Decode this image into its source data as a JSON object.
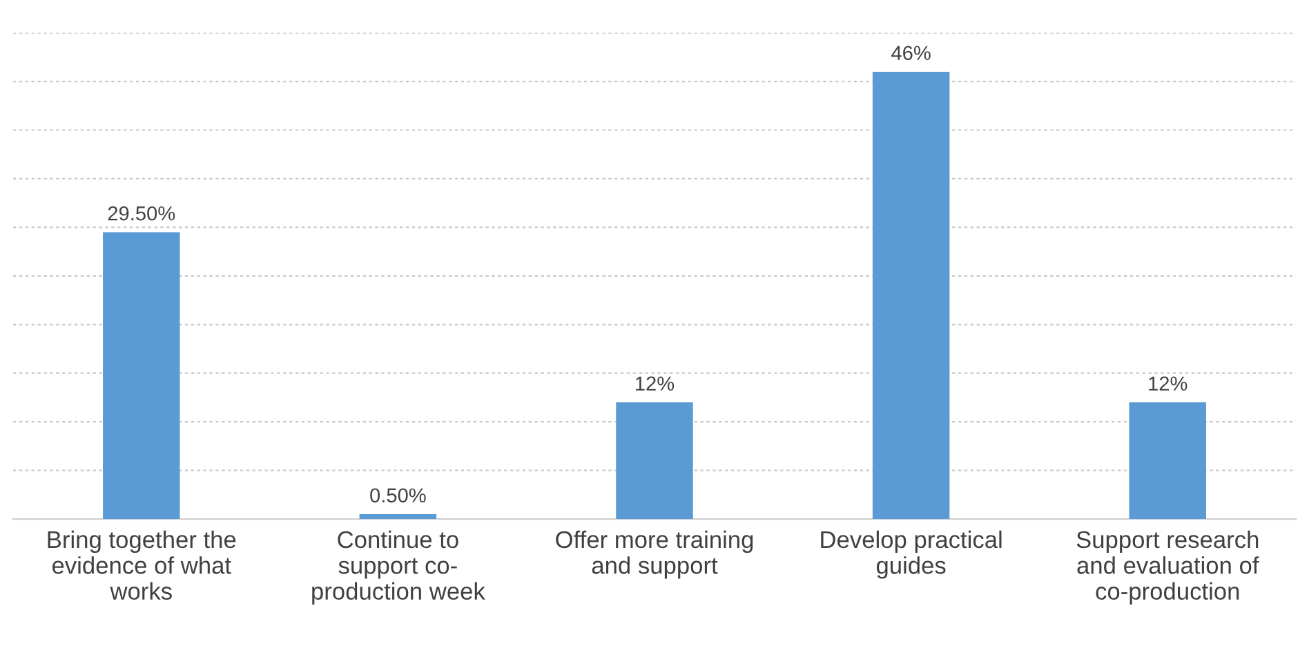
{
  "chart_data": {
    "type": "bar",
    "categories": [
      "Bring together the\nevidence of what\nworks",
      "Continue to\nsupport co-\nproduction week",
      "Offer more training\nand support",
      "Develop practical\nguides",
      "Support research\nand evaluation of\nco-production"
    ],
    "values": [
      29.5,
      0.5,
      12,
      46,
      12
    ],
    "value_labels": [
      "29.50%",
      "0.50%",
      "12%",
      "46%",
      "12%"
    ],
    "color": "#5b9bd5",
    "ylim": [
      0,
      50
    ],
    "yticks": [
      {
        "value": 0,
        "label": null
      },
      {
        "value": 5,
        "label": null
      },
      {
        "value": 10,
        "label": null
      },
      {
        "value": 15,
        "label": null
      },
      {
        "value": 20,
        "label": null
      },
      {
        "value": 25,
        "label": null
      },
      {
        "value": 30,
        "label": null
      },
      {
        "value": 35,
        "label": null
      },
      {
        "value": 40,
        "label": null
      },
      {
        "value": 45,
        "label": null
      },
      {
        "value": 50,
        "label": null
      }
    ],
    "grid": "y",
    "tick_labels": "x"
  }
}
